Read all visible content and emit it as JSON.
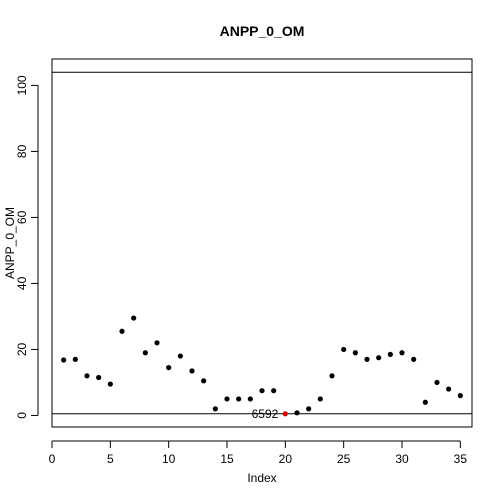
{
  "chart_data": {
    "type": "scatter",
    "title": "ANPP_0_OM",
    "xlabel": "Index",
    "ylabel": "ANPP_0_OM",
    "xlim": [
      0,
      36
    ],
    "ylim": [
      -3.5,
      108
    ],
    "x_ticks": [
      0,
      5,
      10,
      15,
      20,
      25,
      30,
      35
    ],
    "y_ticks": [
      0,
      20,
      40,
      60,
      80,
      100
    ],
    "grid": false,
    "series": [
      {
        "x": [
          1,
          2,
          3,
          4,
          5,
          6,
          7,
          8,
          9,
          10,
          11,
          12,
          13,
          14,
          15,
          16,
          17,
          18,
          19,
          20,
          21,
          22,
          23,
          24,
          25,
          26,
          27,
          28,
          29,
          30,
          31,
          32,
          33,
          34,
          35
        ],
        "values": [
          16.8,
          17,
          12,
          11.5,
          9.5,
          25.5,
          29.5,
          19,
          22,
          14.5,
          18,
          13.5,
          10.5,
          2,
          5,
          5,
          5,
          7.5,
          7.5,
          0.5,
          0.8,
          2,
          5,
          12,
          20,
          19,
          17,
          17.5,
          18.5,
          19,
          17,
          4,
          10,
          8,
          6
        ]
      }
    ],
    "highlight_point": {
      "x": 20,
      "y": 0.5,
      "label": "6592",
      "color": "#cc0000"
    },
    "reference_lines": [
      {
        "y": 104
      },
      {
        "y": 0.5
      }
    ],
    "point_color": "#000000"
  }
}
